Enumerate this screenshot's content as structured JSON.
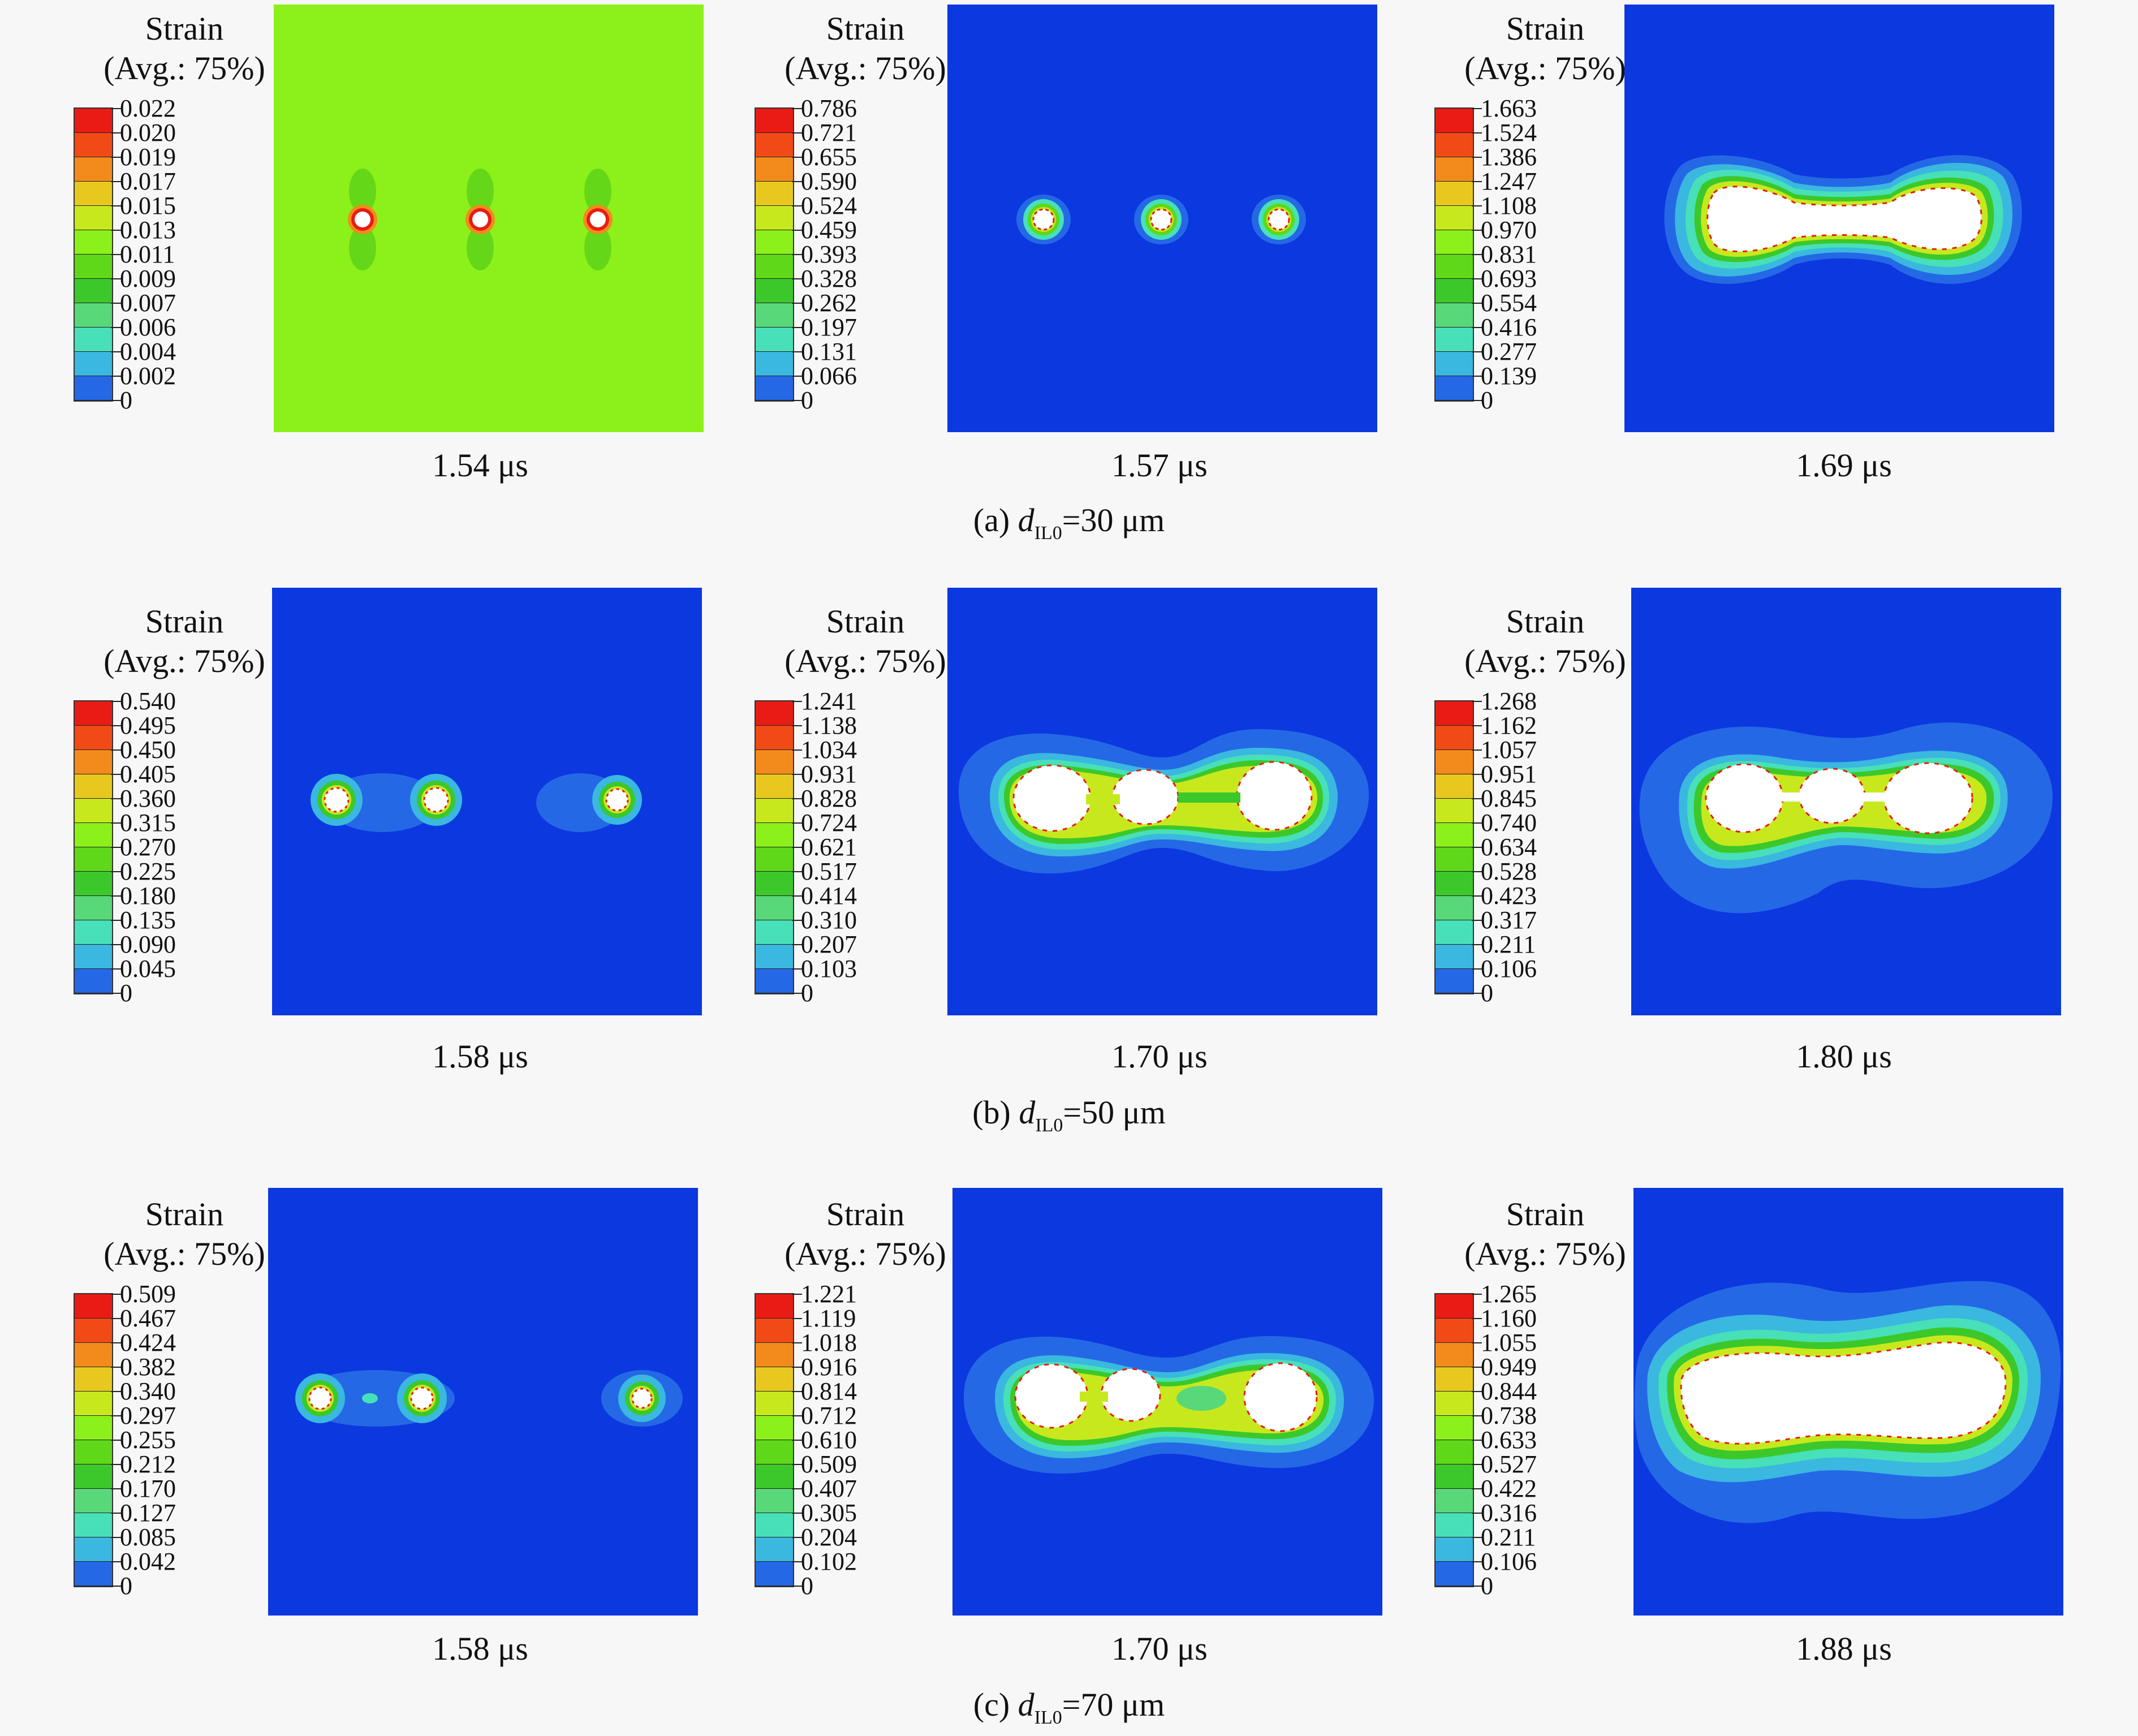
{
  "legend": {
    "title": "Strain",
    "subtitle": "(Avg.: 75%)"
  },
  "scale_colors": [
    "#e81c14",
    "#f24a16",
    "#f38b1c",
    "#e8c81e",
    "#c8e81e",
    "#8cf01a",
    "#5ed818",
    "#3cc82a",
    "#58d878",
    "#48e0b8",
    "#3ab8e0",
    "#2468e6",
    "#0c38e0"
  ],
  "rows": [
    {
      "caption_prefix": "(a) ",
      "caption_var": "d",
      "caption_sub": "IL0",
      "caption_suffix": "=30 μm",
      "panels": [
        {
          "time": "1.54 μs",
          "ticks": [
            "0.022",
            "0.020",
            "0.019",
            "0.017",
            "0.015",
            "0.013",
            "0.011",
            "0.009",
            "0.007",
            "0.006",
            "0.004",
            "0.002",
            "0"
          ]
        },
        {
          "time": "1.57 μs",
          "ticks": [
            "0.786",
            "0.721",
            "0.655",
            "0.590",
            "0.524",
            "0.459",
            "0.393",
            "0.328",
            "0.262",
            "0.197",
            "0.131",
            "0.066",
            "0"
          ]
        },
        {
          "time": "1.69 μs",
          "ticks": [
            "1.663",
            "1.524",
            "1.386",
            "1.247",
            "1.108",
            "0.970",
            "0.831",
            "0.693",
            "0.554",
            "0.416",
            "0.277",
            "0.139",
            "0"
          ]
        }
      ]
    },
    {
      "caption_prefix": "(b) ",
      "caption_var": "d",
      "caption_sub": "IL0",
      "caption_suffix": "=50 μm",
      "panels": [
        {
          "time": "1.58 μs",
          "ticks": [
            "0.540",
            "0.495",
            "0.450",
            "0.405",
            "0.360",
            "0.315",
            "0.270",
            "0.225",
            "0.180",
            "0.135",
            "0.090",
            "0.045",
            "0"
          ]
        },
        {
          "time": "1.70 μs",
          "ticks": [
            "1.241",
            "1.138",
            "1.034",
            "0.931",
            "0.828",
            "0.724",
            "0.621",
            "0.517",
            "0.414",
            "0.310",
            "0.207",
            "0.103",
            "0"
          ]
        },
        {
          "time": "1.80 μs",
          "ticks": [
            "1.268",
            "1.162",
            "1.057",
            "0.951",
            "0.845",
            "0.740",
            "0.634",
            "0.528",
            "0.423",
            "0.317",
            "0.211",
            "0.106",
            "0"
          ]
        }
      ]
    },
    {
      "caption_prefix": "(c) ",
      "caption_var": "d",
      "caption_sub": "IL0",
      "caption_suffix": "=70 μm",
      "panels": [
        {
          "time": "1.58 μs",
          "ticks": [
            "0.509",
            "0.467",
            "0.424",
            "0.382",
            "0.340",
            "0.297",
            "0.255",
            "0.212",
            "0.170",
            "0.127",
            "0.085",
            "0.042",
            "0"
          ]
        },
        {
          "time": "1.70 μs",
          "ticks": [
            "1.221",
            "1.119",
            "1.018",
            "0.916",
            "0.814",
            "0.712",
            "0.610",
            "0.509",
            "0.407",
            "0.305",
            "0.204",
            "0.102",
            "0"
          ]
        },
        {
          "time": "1.88 μs",
          "ticks": [
            "1.265",
            "1.160",
            "1.055",
            "0.949",
            "0.844",
            "0.738",
            "0.633",
            "0.527",
            "0.422",
            "0.316",
            "0.211",
            "0.106",
            "0"
          ]
        }
      ]
    }
  ]
}
